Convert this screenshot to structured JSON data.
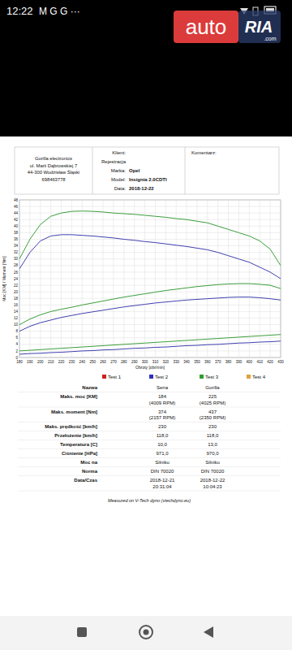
{
  "status_bar": {
    "time": "12:22",
    "icons": "M G G ···"
  },
  "header": {
    "logo_auto": "auto",
    "logo_ria": "RIA",
    "logo_com": ".com"
  },
  "sheet": {
    "company": [
      "Gorilla electronics",
      "ul. Marii Dąbrowskiej 7",
      "44-300 Wodzisław Śląski",
      "698463778"
    ],
    "fields": [
      {
        "label": "Klient:"
      },
      {
        "label": "Rejestracja"
      },
      {
        "label": "Marka:",
        "value": "Opel"
      },
      {
        "label": "Model:",
        "value": "Insignia 2.0CDTI"
      },
      {
        "label": "Data:",
        "value": "2018-12-22"
      }
    ],
    "comment_label": "Komentarz:"
  },
  "chart_data": {
    "type": "line",
    "xlabel": "Obroty [obr/min]",
    "ylabel": "Moc [KM] / Moment [Nm]",
    "x": [
      180,
      190,
      200,
      210,
      220,
      230,
      240,
      250,
      260,
      270,
      280,
      290,
      300,
      310,
      320,
      330,
      340,
      350,
      360,
      370,
      380,
      390,
      400,
      410,
      420,
      430
    ],
    "xlim": [
      180,
      430
    ],
    "xticks": [
      180,
      190,
      200,
      210,
      220,
      230,
      240,
      250,
      260,
      270,
      280,
      290,
      300,
      310,
      320,
      330,
      340,
      350,
      360,
      370,
      380,
      390,
      400,
      410,
      420,
      430
    ],
    "ylim": [
      0,
      48
    ],
    "yticks": [
      0,
      2,
      4,
      6,
      8,
      10,
      12,
      14,
      16,
      18,
      20,
      22,
      24,
      26,
      28,
      30,
      32,
      34,
      36,
      38,
      40,
      42,
      44,
      46,
      48
    ],
    "grid": true,
    "series": [
      {
        "name": "Test 3",
        "color": "#3c9e3c",
        "values": [
          30,
          36,
          40.5,
          43,
          44,
          44.5,
          44.6,
          44.5,
          44.3,
          44,
          43.8,
          43.6,
          43.3,
          43,
          42.7,
          42.3,
          42,
          41.5,
          41,
          40,
          39,
          38,
          37,
          35.5,
          33,
          28
        ]
      },
      {
        "name": "Test 2",
        "color": "#4040b0",
        "values": [
          27,
          32,
          35.5,
          37,
          37.4,
          37.4,
          37.2,
          37,
          36.7,
          36.4,
          36,
          35.7,
          35.3,
          35,
          34.6,
          34.2,
          33.8,
          33.3,
          32.8,
          32,
          31,
          30,
          29,
          27.5,
          26,
          24
        ]
      },
      {
        "name": "Test 3",
        "color": "#3c9e3c",
        "values": [
          10,
          11.7,
          13,
          14,
          14.7,
          15.3,
          16,
          16.6,
          17.2,
          17.8,
          18.4,
          18.9,
          19.4,
          19.9,
          20.4,
          20.8,
          21.2,
          21.6,
          21.9,
          22.2,
          22.4,
          22.5,
          22.5,
          22.3,
          22,
          21
        ]
      },
      {
        "name": "Test 2",
        "color": "#4040b0",
        "values": [
          8,
          9.5,
          10.6,
          11.4,
          12.2,
          12.8,
          13.4,
          13.9,
          14.4,
          14.9,
          15.4,
          15.8,
          16.2,
          16.6,
          16.9,
          17.2,
          17.5,
          17.7,
          17.9,
          18.1,
          18.3,
          18.4,
          18.4,
          18.2,
          17.9,
          17.5
        ]
      },
      {
        "name": "Test 3",
        "color": "#3c9e3c",
        "values": [
          2,
          2.2,
          2.4,
          2.6,
          2.8,
          3,
          3.2,
          3.4,
          3.6,
          3.8,
          4,
          4.2,
          4.4,
          4.6,
          4.8,
          5,
          5.2,
          5.4,
          5.6,
          5.8,
          6,
          6.2,
          6.4,
          6.6,
          6.8,
          7
        ]
      },
      {
        "name": "Test 2",
        "color": "#4040b0",
        "values": [
          1,
          1.2,
          1.3,
          1.5,
          1.6,
          1.8,
          2,
          2.1,
          2.3,
          2.4,
          2.6,
          2.8,
          2.9,
          3.1,
          3.2,
          3.4,
          3.6,
          3.7,
          3.9,
          4,
          4.2,
          4.4,
          4.5,
          4.7,
          4.8,
          5
        ]
      }
    ]
  },
  "table": {
    "legend": [
      {
        "name": "Test 1",
        "color": "#cc2222"
      },
      {
        "name": "Test 2",
        "color": "#3030c0"
      },
      {
        "name": "Test 3",
        "color": "#2e9e2e"
      },
      {
        "name": "Test 4",
        "color": "#e0a040"
      }
    ],
    "rows": [
      {
        "label": "Nazwa",
        "values": [
          [
            "Seria"
          ],
          [
            "Gorilla"
          ]
        ]
      },
      {
        "label": "Maks. moc [KM]",
        "values": [
          [
            "184",
            "(4009 RPM)"
          ],
          [
            "225",
            "(4025 RPM)"
          ]
        ]
      },
      {
        "label": "Maks. moment [Nm]",
        "values": [
          [
            "374",
            "(2157 RPM)"
          ],
          [
            "437",
            "(2350 RPM)"
          ]
        ]
      },
      {
        "label": "Maks. prędkość [km/h]",
        "values": [
          [
            "230"
          ],
          [
            "230"
          ]
        ]
      },
      {
        "label": "Przełożenie [km/h]",
        "values": [
          [
            "118,0"
          ],
          [
            "118,0"
          ]
        ]
      },
      {
        "label": "Temperatura [C]",
        "values": [
          [
            "10,0"
          ],
          [
            "13,0"
          ]
        ]
      },
      {
        "label": "Ciśnienie [HPa]",
        "values": [
          [
            "971,0"
          ],
          [
            "970,0"
          ]
        ]
      },
      {
        "label": "Moc na",
        "values": [
          [
            "Silniku"
          ],
          [
            "Silniku"
          ]
        ]
      },
      {
        "label": "Norma",
        "values": [
          [
            "DIN 70020"
          ],
          [
            "DIN 70020"
          ]
        ]
      },
      {
        "label": "Data/Czas",
        "values": [
          [
            "2018-12-21",
            "20:31:04"
          ],
          [
            "2018-12-22",
            "10:04:23"
          ]
        ]
      }
    ]
  },
  "footer": "Measured on V-Tech dyno (vtechdyno.eu)"
}
